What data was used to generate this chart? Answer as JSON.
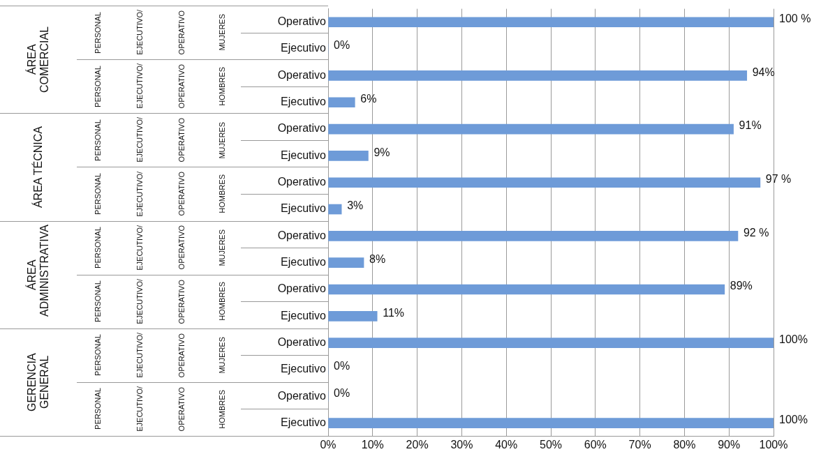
{
  "chart_data": {
    "type": "bar",
    "orientation": "horizontal",
    "categories": [
      "Operativo",
      "Ejecutivo",
      "Operativo",
      "Ejecutivo",
      "Operativo",
      "Ejecutivo",
      "Operativo",
      "Ejecutivo",
      "Operativo",
      "Ejecutivo",
      "Operativo",
      "Ejecutivo",
      "Operativo",
      "Ejecutivo",
      "Operativo",
      "Ejecutivo"
    ],
    "values": [
      100,
      0,
      94,
      6,
      91,
      9,
      97,
      3,
      92,
      8,
      89,
      11,
      100,
      0,
      0,
      100
    ],
    "value_labels": [
      "100 %",
      "0%",
      "94%",
      "6%",
      "91%",
      "9%",
      "97 %",
      "3%",
      "92 %",
      "8%",
      "89%",
      "11%",
      "100%",
      "0%",
      "0%",
      "100%"
    ],
    "color": "#6e9bd8",
    "xlim": [
      0,
      100
    ],
    "xticks": [
      {
        "value": 0,
        "label": "0%"
      },
      {
        "value": 10,
        "label": "10%"
      },
      {
        "value": 20,
        "label": "20%"
      },
      {
        "value": 30,
        "label": "30%"
      },
      {
        "value": 40,
        "label": "40%"
      },
      {
        "value": 50,
        "label": "50%"
      },
      {
        "value": 60,
        "label": "60%"
      },
      {
        "value": 70,
        "label": "70%"
      },
      {
        "value": 80,
        "label": "80%"
      },
      {
        "value": 90,
        "label": "90%"
      },
      {
        "value": 100,
        "label": "100%"
      }
    ],
    "grid": "x",
    "annotations": [
      "ÁREA COMERCIAL",
      "PERSONAL",
      "EJECUTIVO/",
      "OPERATIVO",
      "MUJERES",
      "PERSONAL",
      "EJECUTIVO/",
      "OPERATIVO",
      "HOMBRES",
      "ÁREA TÉCNICA",
      "PERSONAL",
      "EJECUTIVO/",
      "OPERATIVO",
      "MUJERES",
      "PERSONAL",
      "EJECUTIVO/",
      "OPERATIVO",
      "HOMBRES",
      "ÁREA ADMINISTRATIVA",
      "PERSONAL",
      "EJECUTIVO/",
      "OPERATIVO",
      "MUJERES",
      "PERSONAL",
      "EJECUTIVO/",
      "OPERATIVO",
      "HOMBRES",
      "GERENCIA GENERAL",
      "PERSONAL",
      "EJECUTIVO/",
      "OPERATIVO",
      "MUJERES",
      "PERSONAL",
      "EJECUTIVO/",
      "OPERATIVO",
      "HOMBRES"
    ]
  }
}
